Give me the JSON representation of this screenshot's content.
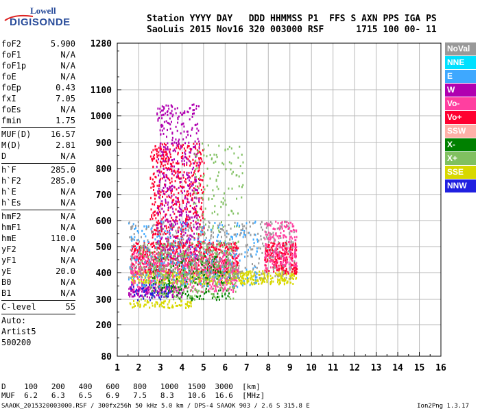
{
  "logo": {
    "line1": "Lowell",
    "line2": "DIGISONDE"
  },
  "header": {
    "row1": [
      "Station",
      "YYYY",
      "DAY",
      "DDD",
      "HHMMSS",
      "P1",
      "FFS",
      "S",
      "AXN",
      "PPS",
      "IGA",
      "PS"
    ],
    "row2": [
      "SaoLuis",
      "2015",
      "Nov16",
      "320",
      "003000",
      "RSF",
      "",
      "1",
      "715",
      "100",
      "00-",
      "11"
    ]
  },
  "params": {
    "group1": [
      {
        "name": "foF2",
        "value": "5.900"
      },
      {
        "name": "foF1",
        "value": "N/A"
      },
      {
        "name": "foF1p",
        "value": "N/A"
      },
      {
        "name": "foE",
        "value": "N/A"
      },
      {
        "name": "foEp",
        "value": "0.43"
      },
      {
        "name": "fxI",
        "value": "7.05"
      },
      {
        "name": "foEs",
        "value": "N/A"
      },
      {
        "name": "fmin",
        "value": "1.75"
      }
    ],
    "group2": [
      {
        "name": "MUF(D)",
        "value": "16.57"
      },
      {
        "name": "M(D)",
        "value": "2.81"
      },
      {
        "name": "D",
        "value": "N/A"
      }
    ],
    "group3": [
      {
        "name": "h`F",
        "value": "285.0"
      },
      {
        "name": "h`F2",
        "value": "285.0"
      },
      {
        "name": "h`E",
        "value": "N/A"
      },
      {
        "name": "h`Es",
        "value": "N/A"
      }
    ],
    "group4": [
      {
        "name": "hmF2",
        "value": "N/A"
      },
      {
        "name": "hmF1",
        "value": "N/A"
      },
      {
        "name": "hmE",
        "value": "110.0"
      },
      {
        "name": "yF2",
        "value": "N/A"
      },
      {
        "name": "yF1",
        "value": "N/A"
      },
      {
        "name": "yE",
        "value": "20.0"
      },
      {
        "name": "B0",
        "value": "N/A"
      },
      {
        "name": "B1",
        "value": "N/A"
      }
    ],
    "clevel": {
      "name": "C-level",
      "value": "55"
    },
    "auto": [
      "Auto:",
      "Artist5",
      "500200"
    ]
  },
  "legend": [
    {
      "label": "NoVal",
      "color": "#999999"
    },
    {
      "label": "NNE",
      "color": "#00e0ff"
    },
    {
      "label": "E",
      "color": "#3ea8ff"
    },
    {
      "label": "W",
      "color": "#b000b0"
    },
    {
      "label": "Vo-",
      "color": "#ff3fa0"
    },
    {
      "label": "Vo+",
      "color": "#ff0030"
    },
    {
      "label": "SSW",
      "color": "#ffb0a8"
    },
    {
      "label": "X-",
      "color": "#008000"
    },
    {
      "label": "X+",
      "color": "#80c060"
    },
    {
      "label": "SSE",
      "color": "#d8d800"
    },
    {
      "label": "NNW",
      "color": "#2020e0"
    }
  ],
  "dmuf": {
    "d_label": "D",
    "d_values": [
      "100",
      "200",
      "400",
      "600",
      "800",
      "1000",
      "1500",
      "3000"
    ],
    "d_unit": "[km]",
    "muf_label": "MUF",
    "muf_values": [
      "6.2",
      "6.3",
      "6.5",
      "6.9",
      "7.5",
      "8.3",
      "10.6",
      "16.6"
    ],
    "muf_unit": "[MHz]"
  },
  "footer": "SAAOK_2015320003000.RSF / 300fx256h 50 kHz 5.0 km / DPS-4 SAAOK 903 / 2.6 S 315.8 E",
  "version": "Ion2Png 1.3.17",
  "chart_data": {
    "type": "scatter",
    "title": "",
    "xlabel": "",
    "ylabel": "",
    "xlim": [
      1,
      16
    ],
    "x_ticks": [
      1,
      2,
      3,
      4,
      5,
      6,
      7,
      8,
      9,
      10,
      11,
      12,
      13,
      14,
      15,
      16
    ],
    "y_ticks": [
      80,
      200,
      300,
      400,
      500,
      600,
      700,
      800,
      900,
      1000,
      1100,
      1280
    ],
    "y_breaks_mapping": "linear 80-1280",
    "ylim": [
      80,
      1280
    ],
    "grid": true,
    "series": [
      {
        "name": "SSE",
        "color": "#d8d800",
        "regions": [
          {
            "x": [
              1.6,
              9.3
            ],
            "y": [
              360,
              410
            ],
            "density": 0.9
          },
          {
            "x": [
              1.5,
              4.5
            ],
            "y": [
              270,
              300
            ],
            "density": 0.6
          }
        ]
      },
      {
        "name": "Vo+",
        "color": "#ff0030",
        "regions": [
          {
            "x": [
              1.6,
              6.6
            ],
            "y": [
              400,
              520
            ],
            "density": 0.7
          },
          {
            "x": [
              7.8,
              9.3
            ],
            "y": [
              400,
              520
            ],
            "density": 0.8
          },
          {
            "x": [
              2.5,
              5.0
            ],
            "y": [
              500,
              900
            ],
            "density": 0.35
          }
        ]
      },
      {
        "name": "Vo-",
        "color": "#ff3fa0",
        "regions": [
          {
            "x": [
              1.6,
              6.6
            ],
            "y": [
              330,
              480
            ],
            "density": 0.5
          },
          {
            "x": [
              7.8,
              9.3
            ],
            "y": [
              420,
              600
            ],
            "density": 0.5
          }
        ]
      },
      {
        "name": "W",
        "color": "#b000b0",
        "regions": [
          {
            "x": [
              1.5,
              4.0
            ],
            "y": [
              310,
              350
            ],
            "density": 0.7
          },
          {
            "x": [
              2.8,
              4.8
            ],
            "y": [
              450,
              1050
            ],
            "density": 0.25
          }
        ]
      },
      {
        "name": "X-",
        "color": "#008000",
        "regions": [
          {
            "x": [
              2.5,
              6.2
            ],
            "y": [
              300,
              470
            ],
            "density": 0.2
          }
        ]
      },
      {
        "name": "X+",
        "color": "#80c060",
        "regions": [
          {
            "x": [
              2.0,
              6.5
            ],
            "y": [
              300,
              520
            ],
            "density": 0.25
          },
          {
            "x": [
              4.5,
              6.8
            ],
            "y": [
              500,
              900
            ],
            "density": 0.1
          }
        ]
      },
      {
        "name": "NNW",
        "color": "#2020e0",
        "regions": [
          {
            "x": [
              1.6,
              3.5
            ],
            "y": [
              300,
              360
            ],
            "density": 0.3
          }
        ]
      },
      {
        "name": "E",
        "color": "#3ea8ff",
        "regions": [
          {
            "x": [
              1.5,
              7.5
            ],
            "y": [
              350,
              600
            ],
            "density": 0.12
          }
        ]
      },
      {
        "name": "NoVal",
        "color": "#999999",
        "regions": [
          {
            "x": [
              1.5,
              9.2
            ],
            "y": [
              380,
              600
            ],
            "density": 0.15
          }
        ]
      }
    ]
  }
}
